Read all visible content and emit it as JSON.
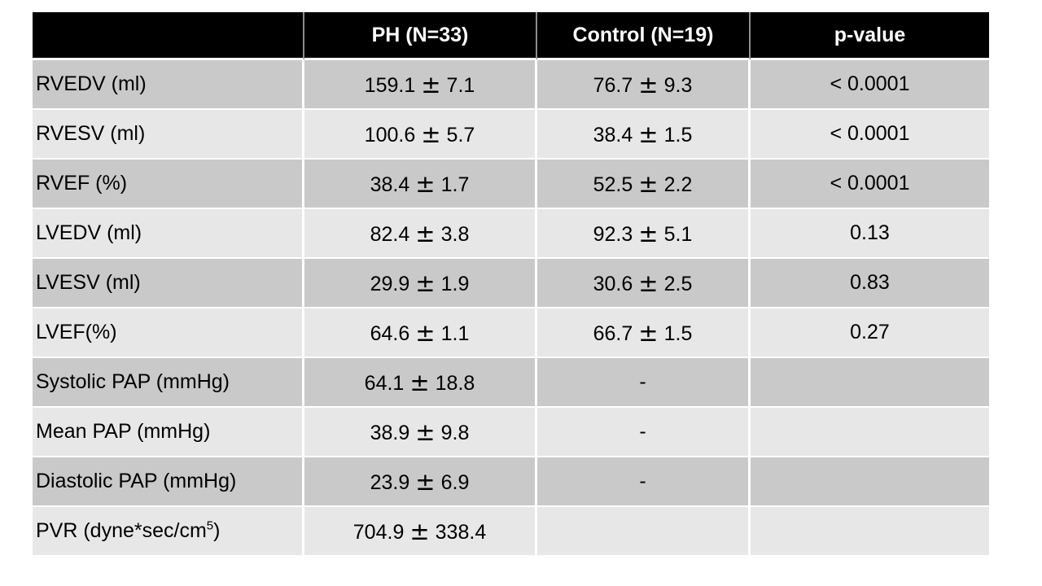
{
  "pm_symbol": "±",
  "colors": {
    "header_bg": "#000000",
    "header_text": "#ffffff",
    "row_dark": "#c9c9c9",
    "row_light": "#e7e7e7",
    "page_bg": "#ffffff"
  },
  "chart_data": {
    "type": "table",
    "columns": [
      "",
      "PH (N=33)",
      "Control (N=19)",
      "p-value"
    ],
    "rows": [
      [
        "RVEDV (ml)",
        "159.1 ± 7.1",
        "76.7 ± 9.3",
        "< 0.0001"
      ],
      [
        "RVESV (ml)",
        "100.6 ± 5.7",
        "38.4 ± 1.5",
        "< 0.0001"
      ],
      [
        "RVEF (%)",
        "38.4 ± 1.7",
        "52.5 ± 2.2",
        "< 0.0001"
      ],
      [
        "LVEDV (ml)",
        "82.4 ± 3.8",
        "92.3 ± 5.1",
        "0.13"
      ],
      [
        "LVESV (ml)",
        "29.9 ± 1.9",
        "30.6 ± 2.5",
        "0.83"
      ],
      [
        "LVEF(%)",
        "64.6 ± 1.1",
        "66.7 ± 1.5",
        "0.27"
      ],
      [
        "Systolic PAP (mmHg)",
        "64.1 ± 18.8",
        "-",
        ""
      ],
      [
        "Mean PAP (mmHg)",
        "38.9 ± 9.8",
        "-",
        ""
      ],
      [
        "Diastolic PAP (mmHg)",
        "23.9 ± 6.9",
        "-",
        ""
      ],
      [
        "PVR (dyne*sec/cm⁵)",
        "704.9 ± 338.4",
        "",
        ""
      ]
    ]
  },
  "table": {
    "headers": [
      "",
      "PH (N=33)",
      "Control (N=19)",
      "p-value"
    ],
    "rows": [
      {
        "label": "RVEDV (ml)",
        "ph_mean": "159.1",
        "ph_sd": "7.1",
        "ctrl_mean": "76.7",
        "ctrl_sd": "9.3",
        "p": "< 0.0001"
      },
      {
        "label": "RVESV (ml)",
        "ph_mean": "100.6",
        "ph_sd": "5.7",
        "ctrl_mean": "38.4",
        "ctrl_sd": "1.5",
        "p": "< 0.0001"
      },
      {
        "label": "RVEF (%)",
        "ph_mean": "38.4",
        "ph_sd": "1.7",
        "ctrl_mean": "52.5",
        "ctrl_sd": "2.2",
        "p": "< 0.0001"
      },
      {
        "label": "LVEDV (ml)",
        "ph_mean": "82.4",
        "ph_sd": "3.8",
        "ctrl_mean": "92.3",
        "ctrl_sd": "5.1",
        "p": "0.13"
      },
      {
        "label": "LVESV (ml)",
        "ph_mean": "29.9",
        "ph_sd": "1.9",
        "ctrl_mean": "30.6",
        "ctrl_sd": "2.5",
        "p": "0.83"
      },
      {
        "label": "LVEF(%)",
        "ph_mean": "64.6",
        "ph_sd": "1.1",
        "ctrl_mean": "66.7",
        "ctrl_sd": "1.5",
        "p": "0.27"
      },
      {
        "label": "Systolic PAP (mmHg)",
        "ph_mean": "64.1",
        "ph_sd": "18.8",
        "ctrl_text": "-",
        "p": ""
      },
      {
        "label": "Mean PAP (mmHg)",
        "ph_mean": "38.9",
        "ph_sd": "9.8",
        "ctrl_text": "-",
        "p": ""
      },
      {
        "label": "Diastolic PAP (mmHg)",
        "ph_mean": "23.9",
        "ph_sd": "6.9",
        "ctrl_text": "-",
        "p": ""
      },
      {
        "label": "PVR (dyne*sec/cm",
        "label_sup": "5",
        "label_end": ")",
        "ph_mean": "704.9",
        "ph_sd": "338.4",
        "ctrl_text": "",
        "p": ""
      }
    ]
  }
}
